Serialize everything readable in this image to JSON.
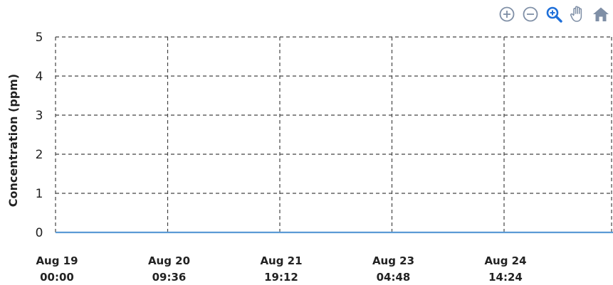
{
  "toolbar": {
    "items": [
      {
        "name": "zoom-in-icon"
      },
      {
        "name": "zoom-out-icon"
      },
      {
        "name": "zoom-select-icon"
      },
      {
        "name": "pan-hand-icon"
      },
      {
        "name": "home-reset-icon"
      }
    ],
    "icon_color": "#7f8fa6",
    "active_color": "#1e6fd9"
  },
  "chart_data": {
    "type": "line",
    "title": "",
    "xlabel": "",
    "ylabel": "Concentration (ppm)",
    "ylim": [
      0,
      5
    ],
    "yticks": [
      "0",
      "1",
      "2",
      "3",
      "4",
      "5"
    ],
    "xticks": [
      {
        "line1": "Aug 19",
        "line2": "00:00"
      },
      {
        "line1": "Aug 20",
        "line2": "09:36"
      },
      {
        "line1": "Aug 21",
        "line2": "19:12"
      },
      {
        "line1": "Aug 23",
        "line2": "04:48"
      },
      {
        "line1": "Aug 24",
        "line2": "14:24"
      }
    ],
    "grid": true,
    "series": [
      {
        "color": "#5b9bd5",
        "x": [
          "Aug 19 00:00",
          "Aug 20 09:36",
          "Aug 21 19:12",
          "Aug 23 04:48",
          "Aug 24 14:24",
          "Aug 25 12:00"
        ],
        "values": [
          0,
          0,
          0,
          0,
          0,
          0
        ]
      }
    ]
  }
}
